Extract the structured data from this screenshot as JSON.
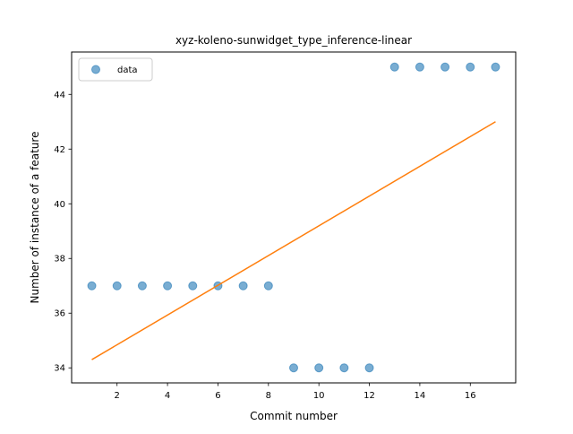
{
  "chart_data": {
    "type": "scatter",
    "title": "xyz-koleno-sunwidget_type_inference-linear",
    "xlabel": "Commit number",
    "ylabel": "Number of instance of a feature",
    "xlim": [
      0.2,
      17.8
    ],
    "ylim": [
      33.45,
      45.55
    ],
    "xticks": [
      2,
      4,
      6,
      8,
      10,
      12,
      14,
      16
    ],
    "yticks": [
      34,
      36,
      38,
      40,
      42,
      44
    ],
    "grid": false,
    "legend": {
      "position": "upper left",
      "entries": [
        "data"
      ]
    },
    "series": [
      {
        "name": "data",
        "kind": "scatter",
        "color": "#1f77b4",
        "x": [
          1,
          2,
          3,
          4,
          5,
          6,
          7,
          8,
          9,
          10,
          11,
          12,
          13,
          14,
          15,
          16,
          17
        ],
        "y": [
          37,
          37,
          37,
          37,
          37,
          37,
          37,
          37,
          34,
          34,
          34,
          34,
          45,
          45,
          45,
          45,
          45
        ]
      },
      {
        "kind": "line",
        "color": "#ff7f0e",
        "x": [
          1,
          17
        ],
        "y": [
          34.3,
          43.0
        ]
      }
    ]
  }
}
